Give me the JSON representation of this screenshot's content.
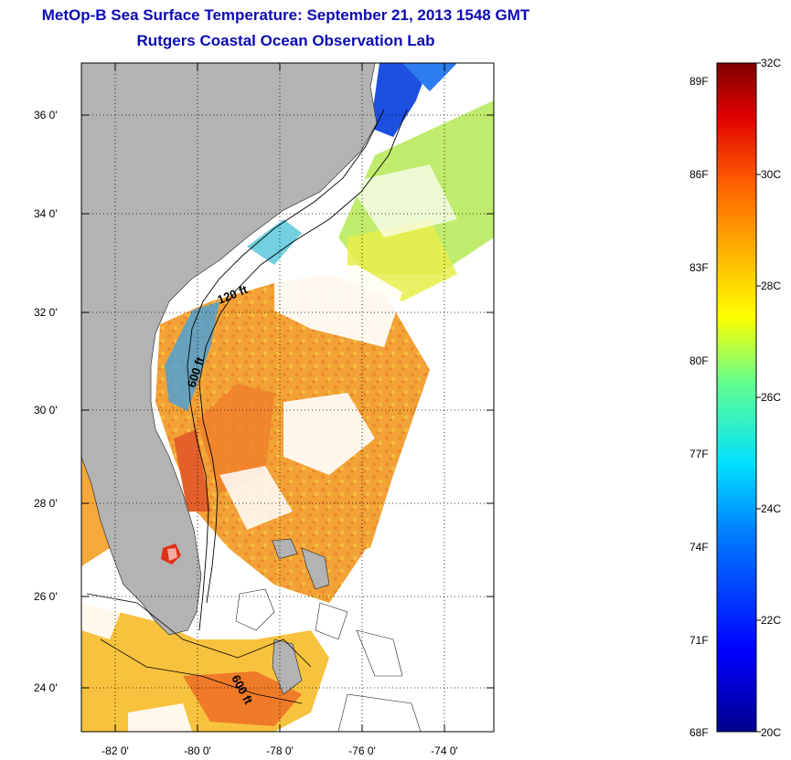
{
  "title": "MetOp-B Sea Surface Temperature:  September 21, 2013 1548 GMT",
  "subtitle": "Rutgers Coastal Ocean Observation Lab",
  "axes": {
    "lat_ticks": [
      "36 0'",
      "34 0'",
      "32 0'",
      "30 0'",
      "28 0'",
      "26 0'",
      "24 0'"
    ],
    "lon_ticks": [
      "-82 0'",
      "-80 0'",
      "-78 0'",
      "-76 0'",
      "-74 0'"
    ]
  },
  "contours": {
    "label_120": "120 ft",
    "label_600_north": "600 ft",
    "label_600_south": "600 ft"
  },
  "colorbar": {
    "celsius_labels": [
      "32C",
      "30C",
      "28C",
      "26C",
      "24C",
      "22C",
      "20C"
    ],
    "fahrenheit_labels": [
      "89F",
      "86F",
      "83F",
      "80F",
      "77F",
      "74F",
      "71F",
      "68F"
    ],
    "min_c": 20,
    "max_c": 32
  },
  "colors": {
    "title": "#0b0bb4",
    "land": "#b3b3b3",
    "cloud": "#ffffff"
  }
}
